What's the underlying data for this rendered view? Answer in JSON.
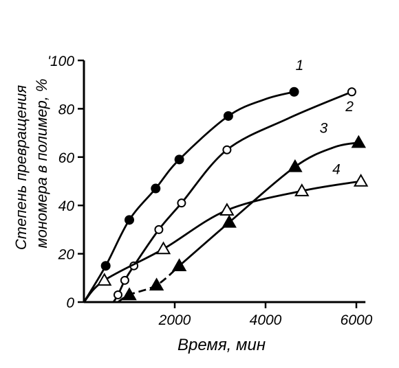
{
  "chart_data": {
    "type": "line",
    "xlabel": "Время, мин",
    "ylabel_line1": "Степень превращения",
    "ylabel_line2": "мономера в полимер, %",
    "xlim": [
      0,
      6200
    ],
    "ylim": [
      0,
      100
    ],
    "xticks": [
      2000,
      4000,
      6000
    ],
    "yticks": [
      0,
      20,
      40,
      60,
      80,
      100
    ],
    "ytick_labels": [
      "0",
      "20",
      "40",
      "60",
      "80",
      "'100"
    ],
    "grid": false,
    "series": [
      {
        "name": "1",
        "marker": "filled-circle",
        "linestyle": "solid",
        "x": [
          480,
          1000,
          1580,
          2100,
          3180,
          4630
        ],
        "y": [
          15,
          34,
          47,
          59,
          77,
          87
        ],
        "curve": [
          [
            0,
            0
          ],
          [
            480,
            15
          ],
          [
            1000,
            34
          ],
          [
            1580,
            47
          ],
          [
            2100,
            59
          ],
          [
            3180,
            77
          ],
          [
            4000,
            84
          ],
          [
            4630,
            87
          ]
        ]
      },
      {
        "name": "2",
        "marker": "open-circle",
        "linestyle": "solid",
        "x": [
          750,
          900,
          1100,
          1650,
          2150,
          3150,
          5900
        ],
        "y": [
          3,
          9,
          15,
          30,
          41,
          63,
          87
        ],
        "curve": [
          [
            650,
            0
          ],
          [
            750,
            3
          ],
          [
            900,
            9
          ],
          [
            1100,
            15
          ],
          [
            1650,
            30
          ],
          [
            2150,
            41
          ],
          [
            3150,
            63
          ],
          [
            4500,
            76
          ],
          [
            5900,
            87
          ]
        ]
      },
      {
        "name": "3",
        "marker": "filled-triangle",
        "linestyle": "dashed-then-solid",
        "x": [
          1000,
          1600,
          2100,
          3200,
          4650,
          6050
        ],
        "y": [
          3,
          7,
          15,
          33,
          56,
          66
        ],
        "curve": [
          [
            750,
            0
          ],
          [
            1000,
            3
          ],
          [
            1600,
            7
          ],
          [
            2100,
            15
          ],
          [
            3200,
            33
          ],
          [
            4650,
            56
          ],
          [
            5500,
            64
          ],
          [
            6050,
            66
          ]
        ],
        "dash_until_x": 2200
      },
      {
        "name": "4",
        "marker": "open-triangle",
        "linestyle": "solid",
        "x": [
          450,
          1750,
          3150,
          4800,
          6100
        ],
        "y": [
          9,
          22,
          38,
          46,
          50
        ],
        "curve": [
          [
            0,
            0
          ],
          [
            450,
            9
          ],
          [
            1750,
            22
          ],
          [
            3150,
            38
          ],
          [
            4800,
            46
          ],
          [
            6100,
            50
          ]
        ]
      }
    ]
  }
}
